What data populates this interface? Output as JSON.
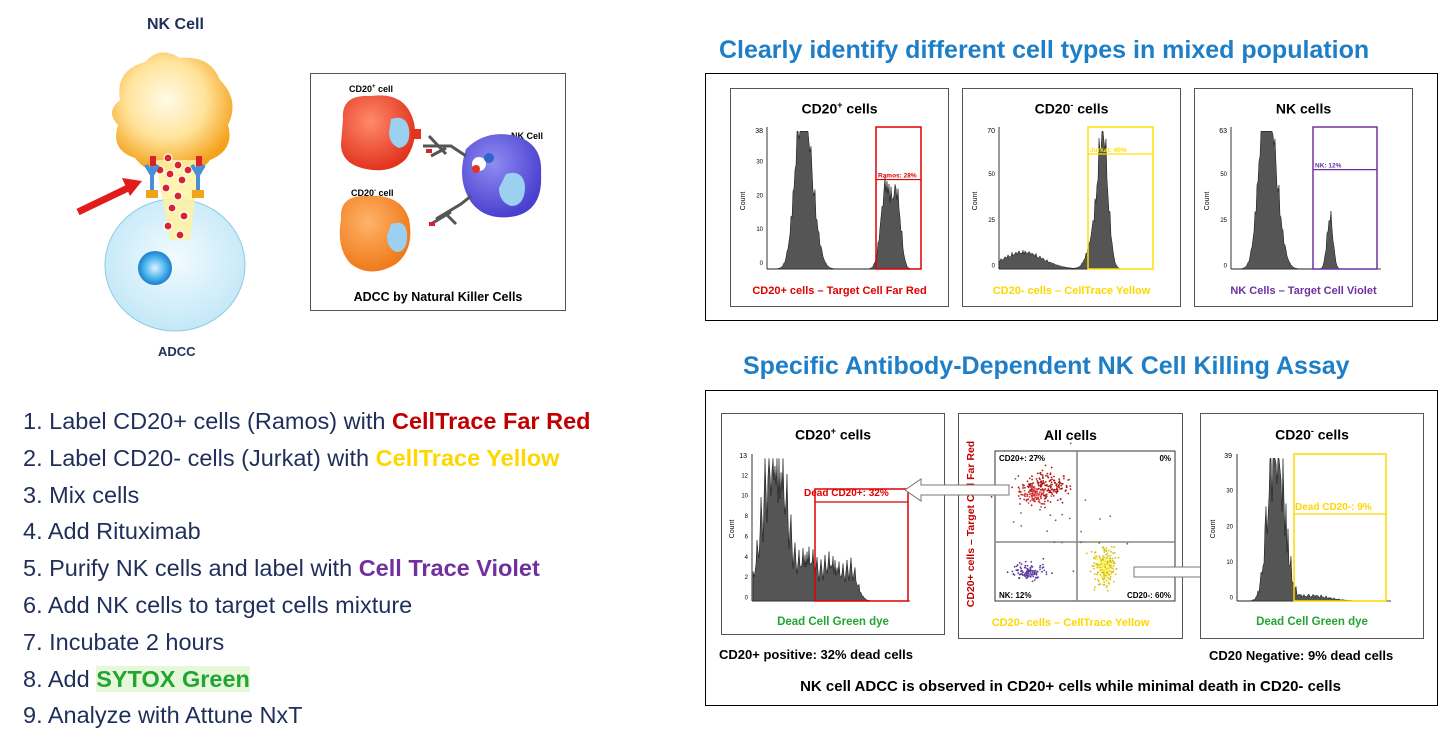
{
  "left_diagram": {
    "nk_cell_label": "NK Cell",
    "adcc_label": "ADCC"
  },
  "inset_diagram": {
    "cd20_pos_label_main": "CD20",
    "cd20_pos_label_sup": "+",
    "cd20_pos_label_rest": " cell",
    "cd20_neg_label_main": "CD20",
    "cd20_neg_label_sup": "-",
    "cd20_neg_label_rest": " cell",
    "nk_label": "NK Cell",
    "caption": "ADCC by Natural Killer Cells"
  },
  "steps": [
    {
      "prefix": "1. Label CD20+ cells (Ramos) with ",
      "highlight": "CellTrace Far Red",
      "color": "#c00000"
    },
    {
      "prefix": "2. Label CD20- cells (Jurkat) with ",
      "highlight": "CellTrace Yellow",
      "color": "#ffd700"
    },
    {
      "prefix": "3. Mix cells",
      "highlight": "",
      "color": ""
    },
    {
      "prefix": "4. Add Rituximab",
      "highlight": "",
      "color": ""
    },
    {
      "prefix": "5. Purify NK cells and label with ",
      "highlight": "Cell Trace Violet",
      "color": "#7030a0"
    },
    {
      "prefix": "6. Add NK cells to target cells mixture",
      "highlight": "",
      "color": ""
    },
    {
      "prefix": "7. Incubate 2 hours",
      "highlight": "",
      "color": ""
    },
    {
      "prefix": "8. Add ",
      "highlight": "SYTOX Green",
      "color": "#22a633"
    },
    {
      "prefix": "9. Analyze with Attune NxT",
      "highlight": "",
      "color": ""
    }
  ],
  "top_section": {
    "title": "Clearly identify different cell types in mixed population",
    "plots": [
      {
        "title_main": "CD20",
        "title_sup": "+",
        "title_rest": " cells",
        "y_max": "38",
        "ticks": [
          "30",
          "20",
          "10",
          "0"
        ],
        "ylabel": "Count",
        "gate_label": "Ramos: 28%",
        "caption": "CD20+ cells – Target Cell Far Red",
        "color": "#e00000"
      },
      {
        "title_main": "CD20",
        "title_sup": "-",
        "title_rest": " cells",
        "y_max": "70",
        "ticks": [
          "50",
          "25",
          "0"
        ],
        "ylabel": "Count",
        "gate_label": "Jurkat: 40%",
        "caption": "CD20- cells – CellTrace Yellow",
        "color": "#ffe000"
      },
      {
        "title_main": "NK cells",
        "title_sup": "",
        "title_rest": "",
        "y_max": "63",
        "ticks": [
          "50",
          "25",
          "0"
        ],
        "ylabel": "Count",
        "gate_label": "NK: 12%",
        "caption": "NK Cells – Target Cell Violet",
        "color": "#7030a0"
      }
    ]
  },
  "bottom_section": {
    "title": "Specific Antibody-Dependent NK Cell Killing Assay",
    "left_plot": {
      "title_main": "CD20",
      "title_sup": "+",
      "title_rest": " cells",
      "y_max": "13",
      "ticks": [
        "12",
        "10",
        "8",
        "6",
        "4",
        "2",
        "0"
      ],
      "ylabel": "Count",
      "gate_label": "Dead CD20+: 32%",
      "xlabel": "Dead Cell Green dye"
    },
    "middle_plot": {
      "title": "All cells",
      "q_ul": "CD20+: 27%",
      "q_ur": "0%",
      "q_ll": "NK: 12%",
      "q_lr": "CD20-: 60%",
      "ylabel": "CD20+ cells – Target Cell Far Red",
      "xlabel": "CD20- cells – CellTrace Yellow"
    },
    "right_plot": {
      "title_main": "CD20",
      "title_sup": "-",
      "title_rest": " cells",
      "y_max": "39",
      "ticks": [
        "30",
        "20",
        "10",
        "0"
      ],
      "ylabel": "Count",
      "gate_label": "Dead CD20-: 9%",
      "xlabel": "Dead Cell Green dye"
    },
    "left_summary": "CD20+ positive: 32% dead cells",
    "right_summary": "CD20 Negative: 9% dead cells",
    "conclusion": "NK cell ADCC is observed in CD20+ cells while minimal death in CD20- cells"
  },
  "colors": {
    "title_blue": "#1e7fc6",
    "text_navy": "#1f2f5a",
    "far_red": "#c00000",
    "yellow": "#ffd700",
    "violet": "#7030a0",
    "green": "#22a633"
  }
}
